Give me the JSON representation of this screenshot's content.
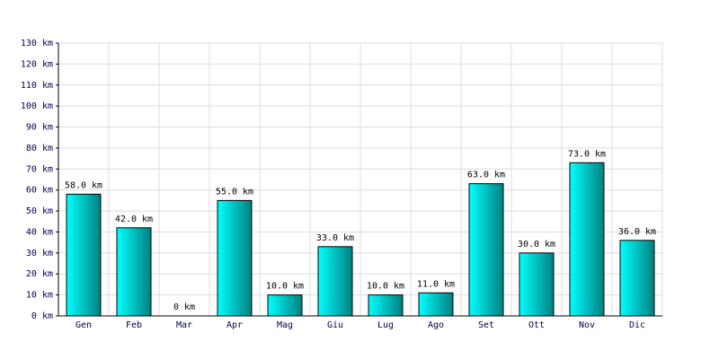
{
  "chart_data": {
    "type": "bar",
    "categories": [
      "Gen",
      "Feb",
      "Mar",
      "Apr",
      "Mag",
      "Giu",
      "Lug",
      "Ago",
      "Set",
      "Ott",
      "Nov",
      "Dic"
    ],
    "values": [
      58,
      42,
      0,
      55,
      10,
      33,
      10,
      11,
      63,
      30,
      73,
      36
    ],
    "value_labels": [
      "58.0 km",
      "42.0 km",
      "0 km",
      "55.0 km",
      "10.0 km",
      "33.0 km",
      "10.0 km",
      "11.0 km",
      "63.0 km",
      "30.0 km",
      "73.0 km",
      "36.0 km"
    ],
    "color": "#00c8c8",
    "ylim": [
      0,
      130
    ],
    "yticks": [
      {
        "value": 0,
        "label": "0 km"
      },
      {
        "value": 10,
        "label": "10 km"
      },
      {
        "value": 20,
        "label": "20 km"
      },
      {
        "value": 30,
        "label": "30 km"
      },
      {
        "value": 40,
        "label": "40 km"
      },
      {
        "value": 50,
        "label": "50 km"
      },
      {
        "value": 60,
        "label": "60 km"
      },
      {
        "value": 70,
        "label": "70 km"
      },
      {
        "value": 80,
        "label": "80 km"
      },
      {
        "value": 90,
        "label": "90 km"
      },
      {
        "value": 100,
        "label": "100 km"
      },
      {
        "value": 110,
        "label": "110 km"
      },
      {
        "value": 120,
        "label": "120 km"
      },
      {
        "value": 130,
        "label": "130 km"
      }
    ],
    "grid": true
  }
}
